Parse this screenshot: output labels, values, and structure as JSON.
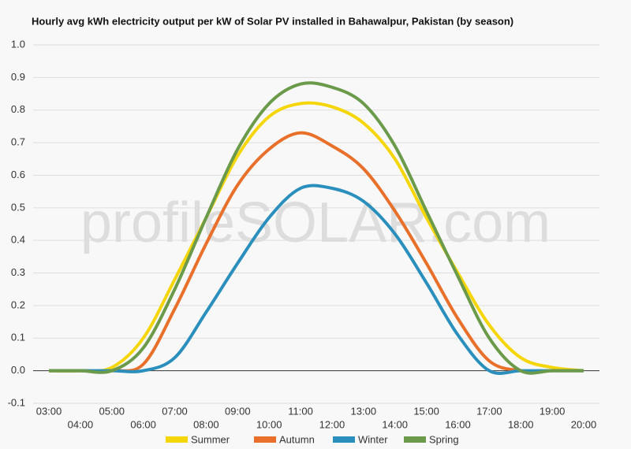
{
  "chart_data": {
    "type": "line",
    "title": "Hourly avg kWh electricity output per kW of Solar PV installed in Bahawalpur, Pakistan (by season)",
    "watermark": "profileSOLAR.com",
    "categories": [
      "03:00",
      "04:00",
      "05:00",
      "06:00",
      "07:00",
      "08:00",
      "09:00",
      "10:00",
      "11:00",
      "12:00",
      "13:00",
      "14:00",
      "15:00",
      "16:00",
      "17:00",
      "18:00",
      "19:00",
      "20:00"
    ],
    "series": [
      {
        "name": "Summer",
        "color": "#f5d60a",
        "values": [
          0,
          0,
          0.01,
          0.1,
          0.28,
          0.47,
          0.66,
          0.78,
          0.82,
          0.81,
          0.76,
          0.65,
          0.47,
          0.3,
          0.14,
          0.04,
          0.01,
          0
        ]
      },
      {
        "name": "Autumn",
        "color": "#e8702a",
        "values": [
          0,
          0,
          0,
          0.02,
          0.19,
          0.39,
          0.57,
          0.68,
          0.73,
          0.69,
          0.62,
          0.49,
          0.33,
          0.16,
          0.03,
          0,
          0,
          0
        ]
      },
      {
        "name": "Winter",
        "color": "#2a8fbd",
        "values": [
          0,
          0,
          0,
          0,
          0.04,
          0.18,
          0.33,
          0.47,
          0.56,
          0.56,
          0.52,
          0.42,
          0.27,
          0.11,
          0,
          0,
          0,
          0
        ]
      },
      {
        "name": "Spring",
        "color": "#6a9a4a",
        "values": [
          0,
          0,
          0,
          0.07,
          0.25,
          0.47,
          0.68,
          0.82,
          0.88,
          0.87,
          0.82,
          0.69,
          0.49,
          0.29,
          0.1,
          0,
          0,
          0
        ]
      }
    ],
    "ylim": [
      -0.1,
      1.0
    ],
    "yticks": [
      {
        "value": -0.1,
        "label": "-0.1"
      },
      {
        "value": 0,
        "label": "0.0"
      },
      0.1,
      0.2,
      0.3,
      0.4,
      0.5,
      0.6,
      0.7,
      0.8,
      0.9,
      {
        "value": 1,
        "label": "1.0"
      }
    ],
    "grid": true
  }
}
